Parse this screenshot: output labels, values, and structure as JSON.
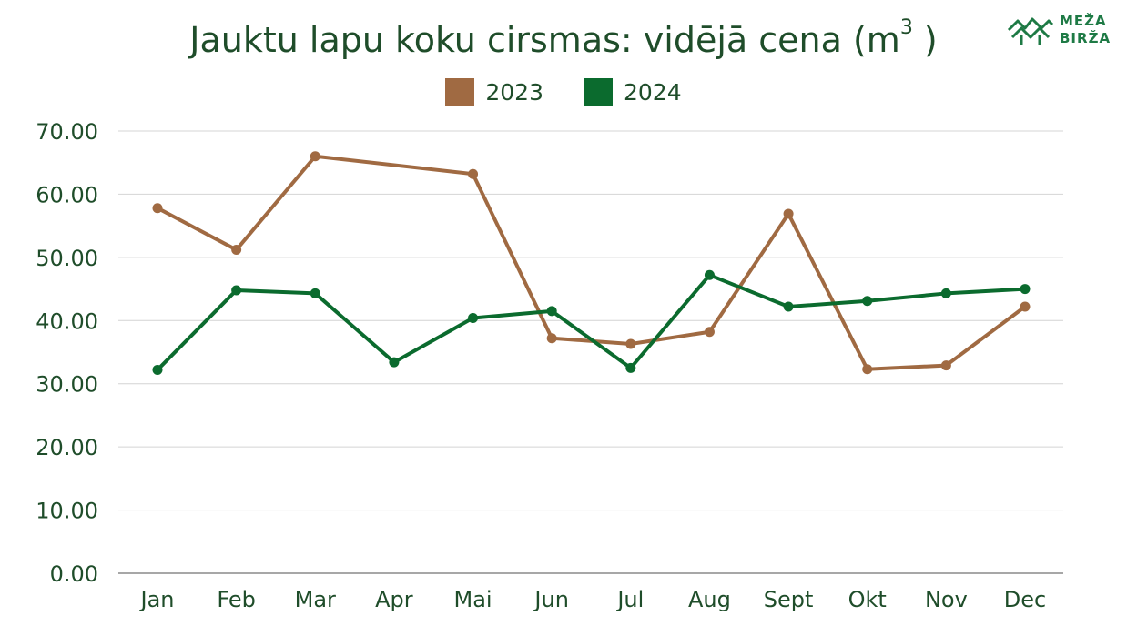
{
  "logo": {
    "line1": "MEŽA",
    "line2": "BIRŽA"
  },
  "chart_data": {
    "type": "line",
    "title": "Jauktu lapu koku cirsmas:  vidējā cena (m",
    "title_superscript": "3",
    "title_suffix": " )",
    "categories": [
      "Jan",
      "Feb",
      "Mar",
      "Apr",
      "Mai",
      "Jun",
      "Jul",
      "Aug",
      "Sept",
      "Okt",
      "Nov",
      "Dec"
    ],
    "series": [
      {
        "name": "2023",
        "color": "#a06a42",
        "values": [
          57.8,
          51.2,
          66.0,
          null,
          63.2,
          37.2,
          36.3,
          38.2,
          56.9,
          32.3,
          32.9,
          42.2
        ]
      },
      {
        "name": "2024",
        "color": "#0b6b2e",
        "values": [
          32.2,
          44.8,
          44.3,
          33.4,
          40.4,
          41.5,
          32.5,
          47.2,
          42.2,
          43.1,
          44.3,
          45.0
        ]
      }
    ],
    "yticks": [
      "0.00",
      "10.00",
      "20.00",
      "30.00",
      "40.00",
      "50.00",
      "60.00",
      "70.00"
    ],
    "ylim": [
      0,
      70
    ],
    "grid": true,
    "legend_position": "top"
  }
}
